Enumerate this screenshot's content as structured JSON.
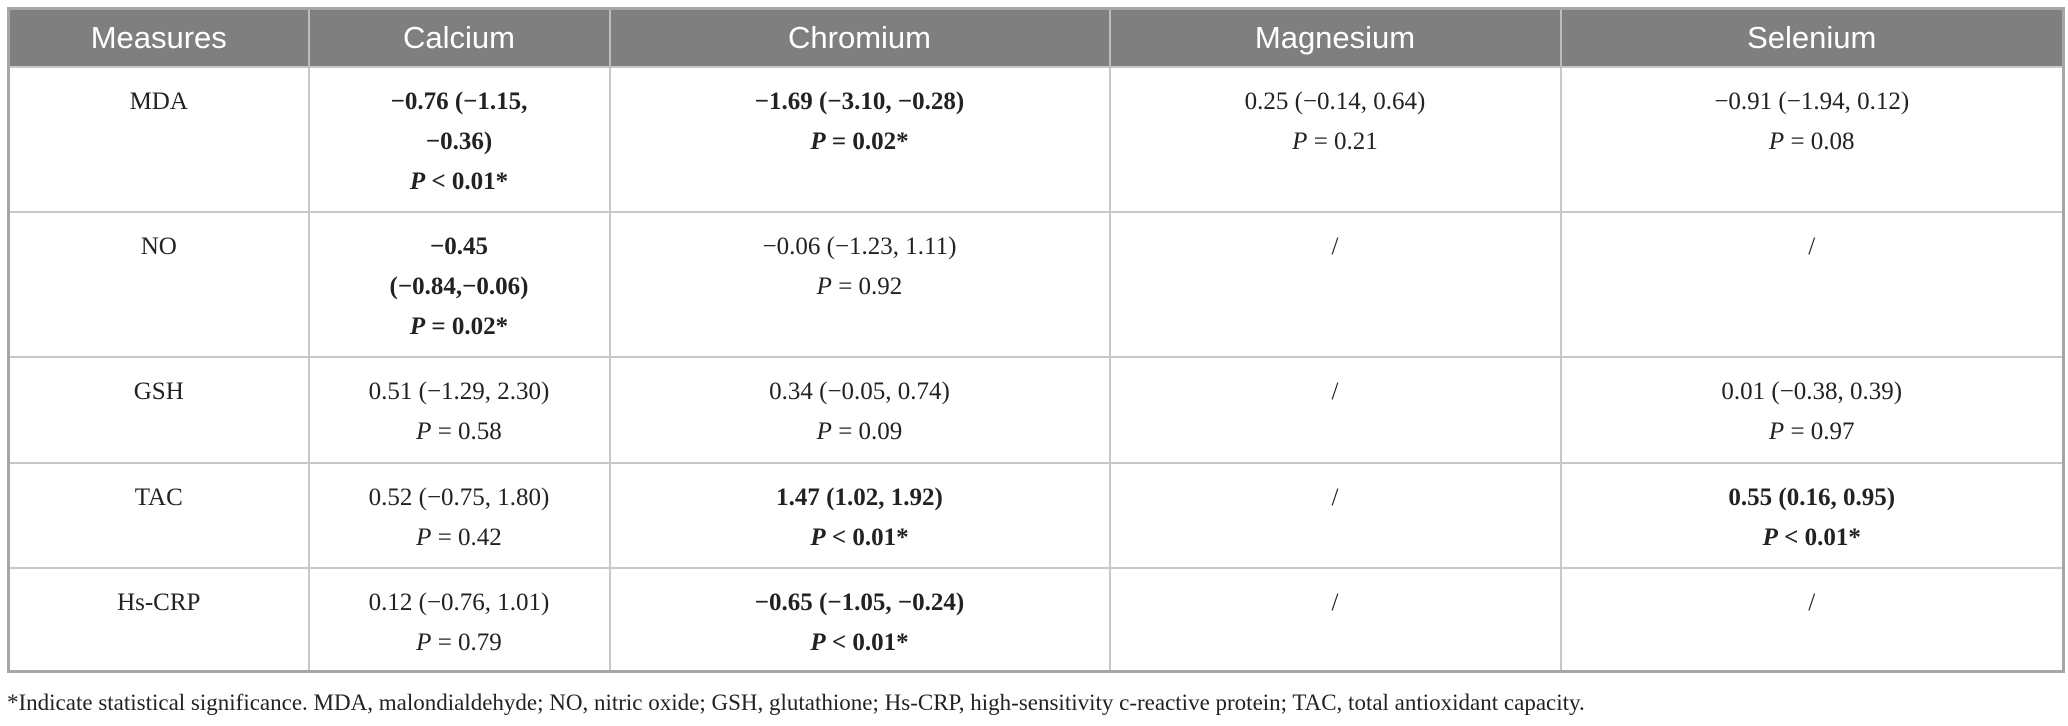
{
  "table": {
    "header": [
      "Measures",
      "Calcium",
      "Chromium",
      "Magnesium",
      "Selenium"
    ],
    "rows": [
      {
        "label": "MDA",
        "cells": [
          {
            "bold": true,
            "lines": [
              "−0.76 (−1.15,",
              "−0.36)",
              "P < 0.01*"
            ]
          },
          {
            "bold": true,
            "lines": [
              "−1.69 (−3.10, −0.28)",
              "P = 0.02*"
            ]
          },
          {
            "bold": false,
            "lines": [
              "0.25 (−0.14, 0.64)",
              "P = 0.21"
            ]
          },
          {
            "bold": false,
            "lines": [
              "−0.91 (−1.94, 0.12)",
              "P = 0.08"
            ]
          }
        ]
      },
      {
        "label": "NO",
        "cells": [
          {
            "bold": true,
            "lines": [
              "−0.45",
              "(−0.84,−0.06)",
              "P = 0.02*"
            ]
          },
          {
            "bold": false,
            "lines": [
              "−0.06 (−1.23, 1.11)",
              "P = 0.92"
            ]
          },
          {
            "bold": false,
            "lines": [
              "/"
            ]
          },
          {
            "bold": false,
            "lines": [
              "/"
            ]
          }
        ]
      },
      {
        "label": "GSH",
        "cells": [
          {
            "bold": false,
            "lines": [
              "0.51 (−1.29, 2.30)",
              "P = 0.58"
            ]
          },
          {
            "bold": false,
            "lines": [
              "0.34 (−0.05, 0.74)",
              "P = 0.09"
            ]
          },
          {
            "bold": false,
            "lines": [
              "/"
            ]
          },
          {
            "bold": false,
            "lines": [
              "0.01 (−0.38, 0.39)",
              "P = 0.97"
            ]
          }
        ]
      },
      {
        "label": "TAC",
        "cells": [
          {
            "bold": false,
            "lines": [
              "0.52 (−0.75, 1.80)",
              "P = 0.42"
            ]
          },
          {
            "bold": true,
            "lines": [
              "1.47 (1.02, 1.92)",
              "P < 0.01*"
            ]
          },
          {
            "bold": false,
            "lines": [
              "/"
            ]
          },
          {
            "bold": true,
            "lines": [
              "0.55 (0.16, 0.95)",
              "P < 0.01*"
            ]
          }
        ]
      },
      {
        "label": "Hs-CRP",
        "cells": [
          {
            "bold": false,
            "lines": [
              "0.12 (−0.76, 1.01)",
              "P = 0.79"
            ]
          },
          {
            "bold": true,
            "lines": [
              "−0.65 (−1.05, −0.24)",
              "P < 0.01*"
            ]
          },
          {
            "bold": false,
            "lines": [
              "/"
            ]
          },
          {
            "bold": false,
            "lines": [
              "/"
            ]
          }
        ]
      }
    ],
    "footnote": "*Indicate statistical significance. MDA, malondialdehyde; NO, nitric oxide; GSH, glutathione; Hs-CRP, high-sensitivity c-reactive protein; TAC, total antioxidant capacity."
  }
}
